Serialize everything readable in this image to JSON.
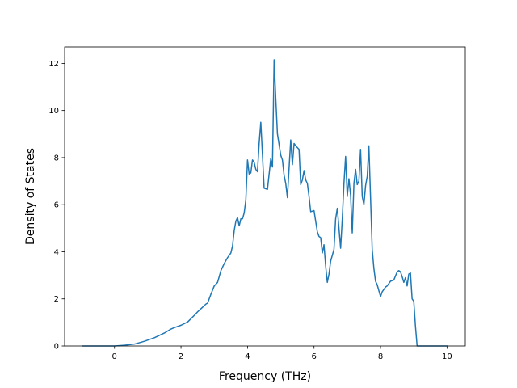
{
  "chart_data": {
    "type": "line",
    "title": "",
    "xlabel": "Frequency (THz)",
    "ylabel": "Density of States",
    "xlim": [
      -1.5,
      10.55
    ],
    "ylim": [
      0,
      12.7
    ],
    "xticks": [
      0,
      2,
      4,
      6,
      8,
      10
    ],
    "yticks": [
      0,
      2,
      4,
      6,
      8,
      10,
      12
    ],
    "xtick_labels": [
      "0",
      "2",
      "4",
      "6",
      "8",
      "10"
    ],
    "ytick_labels": [
      "0",
      "2",
      "4",
      "6",
      "8",
      "10",
      "12"
    ],
    "grid": false,
    "legend": "none",
    "line_color": "#1f77b4",
    "series": [
      {
        "x": [
          -0.95,
          0.0,
          0.3,
          0.6,
          0.9,
          1.2,
          1.5,
          1.7,
          1.8,
          2.0,
          2.2,
          2.4,
          2.5,
          2.6,
          2.75,
          2.8,
          2.9,
          3.0,
          3.1,
          3.2,
          3.3,
          3.4,
          3.5,
          3.55,
          3.6,
          3.65,
          3.7,
          3.75,
          3.8,
          3.85,
          3.9,
          3.95,
          4.0,
          4.05,
          4.1,
          4.15,
          4.2,
          4.25,
          4.3,
          4.35,
          4.4,
          4.5,
          4.6,
          4.65,
          4.7,
          4.75,
          4.8,
          4.85,
          4.9,
          5.0,
          5.05,
          5.1,
          5.15,
          5.2,
          5.25,
          5.3,
          5.35,
          5.4,
          5.45,
          5.55,
          5.6,
          5.65,
          5.7,
          5.75,
          5.8,
          5.85,
          5.9,
          6.0,
          6.05,
          6.1,
          6.15,
          6.2,
          6.25,
          6.3,
          6.35,
          6.4,
          6.45,
          6.5,
          6.6,
          6.65,
          6.7,
          6.75,
          6.8,
          6.85,
          6.9,
          6.95,
          7.0,
          7.05,
          7.1,
          7.15,
          7.2,
          7.25,
          7.3,
          7.35,
          7.4,
          7.45,
          7.5,
          7.55,
          7.6,
          7.65,
          7.7,
          7.75,
          7.8,
          7.85,
          7.9,
          7.95,
          8.0,
          8.05,
          8.1,
          8.15,
          8.2,
          8.3,
          8.4,
          8.5,
          8.55,
          8.6,
          8.65,
          8.7,
          8.75,
          8.8,
          8.85,
          8.9,
          8.95,
          9.0,
          9.05,
          9.1,
          9.15,
          10.0
        ],
        "y": [
          0.0,
          0.0,
          0.03,
          0.08,
          0.2,
          0.35,
          0.55,
          0.72,
          0.78,
          0.88,
          1.02,
          1.3,
          1.45,
          1.58,
          1.78,
          1.82,
          2.2,
          2.55,
          2.7,
          3.2,
          3.5,
          3.75,
          3.95,
          4.25,
          4.9,
          5.3,
          5.45,
          5.1,
          5.4,
          5.4,
          5.65,
          6.2,
          7.9,
          7.3,
          7.35,
          7.9,
          7.8,
          7.5,
          7.4,
          8.6,
          9.5,
          6.7,
          6.65,
          7.3,
          7.95,
          7.6,
          12.15,
          10.5,
          9.0,
          8.1,
          7.9,
          7.25,
          6.9,
          6.3,
          7.55,
          8.75,
          7.7,
          8.6,
          8.5,
          8.35,
          6.85,
          7.05,
          7.45,
          7.05,
          6.9,
          6.35,
          5.7,
          5.75,
          5.3,
          4.85,
          4.65,
          4.6,
          3.95,
          4.3,
          3.4,
          2.7,
          3.05,
          3.6,
          4.1,
          5.4,
          5.85,
          5.0,
          4.15,
          5.4,
          6.9,
          8.05,
          6.35,
          7.1,
          6.4,
          4.8,
          6.9,
          7.5,
          6.85,
          7.0,
          8.35,
          6.35,
          6.0,
          6.8,
          7.2,
          8.5,
          6.3,
          4.1,
          3.3,
          2.75,
          2.6,
          2.35,
          2.1,
          2.3,
          2.4,
          2.5,
          2.55,
          2.75,
          2.8,
          3.15,
          3.2,
          3.15,
          2.95,
          2.7,
          2.9,
          2.55,
          3.05,
          3.1,
          2.0,
          1.9,
          0.85,
          0.0,
          0.0,
          0.0
        ]
      }
    ]
  }
}
